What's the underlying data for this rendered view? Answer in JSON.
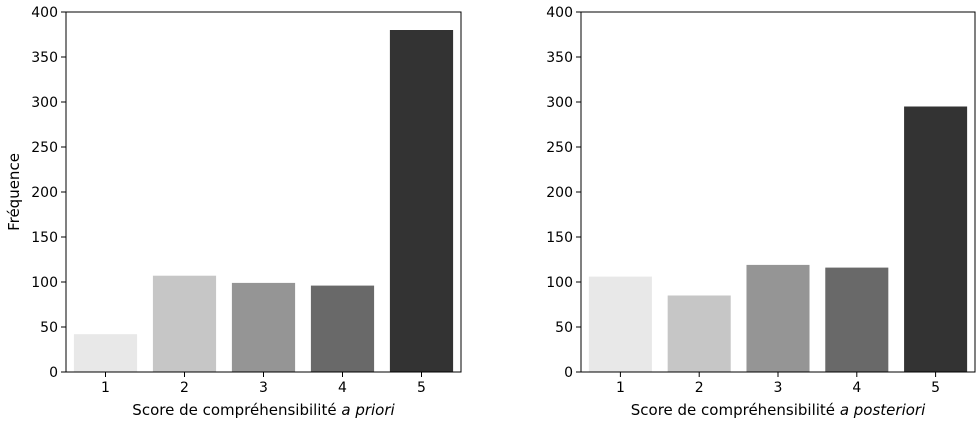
{
  "chart_data": [
    {
      "type": "bar",
      "categories": [
        "1",
        "2",
        "3",
        "4",
        "5"
      ],
      "values": [
        42,
        107,
        99,
        96,
        380
      ],
      "colors": [
        "#e8e8e8",
        "#c6c6c6",
        "#959595",
        "#696969",
        "#333333"
      ],
      "xlabel_main": "Score de compréhensibilité ",
      "xlabel_italic": "a priori",
      "ylabel": "Fréquence",
      "ylim": [
        0,
        400
      ],
      "yticks": [
        "0",
        "50",
        "100",
        "150",
        "200",
        "250",
        "300",
        "350",
        "400"
      ],
      "grid": false
    },
    {
      "type": "bar",
      "categories": [
        "1",
        "2",
        "3",
        "4",
        "5"
      ],
      "values": [
        106,
        85,
        119,
        116,
        295
      ],
      "colors": [
        "#e8e8e8",
        "#c6c6c6",
        "#959595",
        "#696969",
        "#333333"
      ],
      "xlabel_main": "Score de compréhensibilité ",
      "xlabel_italic": "a posteriori",
      "ylabel": "",
      "ylim": [
        0,
        400
      ],
      "yticks": [
        "0",
        "50",
        "100",
        "150",
        "200",
        "250",
        "300",
        "350",
        "400"
      ],
      "grid": false
    }
  ]
}
